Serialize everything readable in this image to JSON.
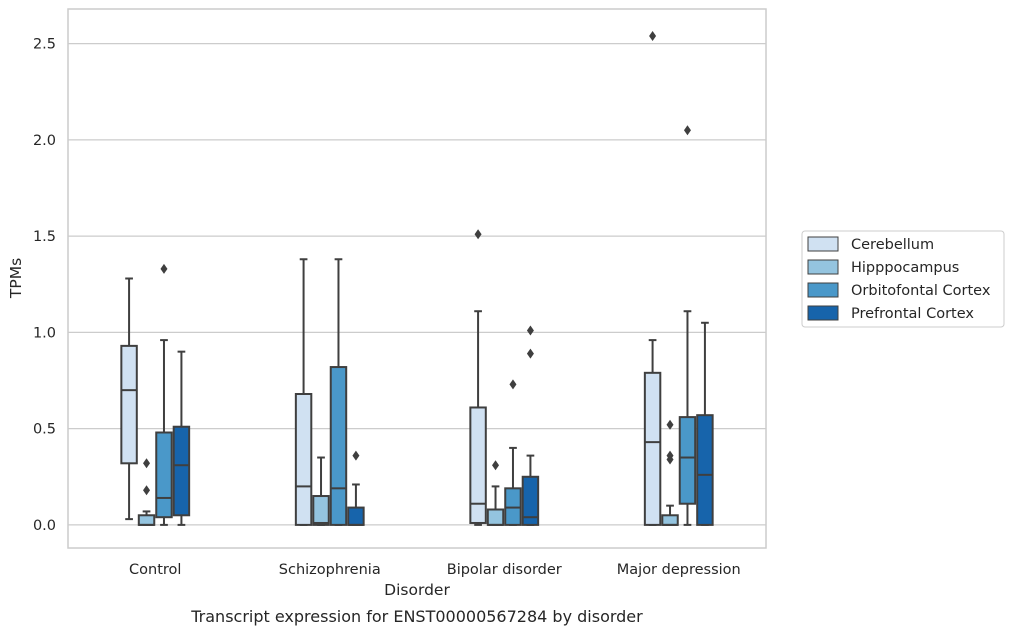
{
  "caption": "Transcript expression for ENST00000567284 by disorder",
  "colors": {
    "Cerebellum": "#d0e1f2",
    "Hipppocampus": "#94c4df",
    "Orbitofontal Cortex": "#4a98c9",
    "Prefrontal Cortex": "#1764ab"
  },
  "chart_data": {
    "type": "boxplot",
    "title": "",
    "xlabel": "Disorder",
    "ylabel": "TPMs",
    "ylim": [
      -0.12,
      2.68
    ],
    "yticks": [
      0.0,
      0.5,
      1.0,
      1.5,
      2.0,
      2.5
    ],
    "ytick_labels": [
      "0.0",
      "0.5",
      "1.0",
      "1.5",
      "2.0",
      "2.5"
    ],
    "grid": "horizontal",
    "legend_position": "right",
    "categories": [
      "Control",
      "Schizophrenia",
      "Bipolar disorder",
      "Major depression"
    ],
    "series": [
      {
        "name": "Cerebellum",
        "boxes": [
          {
            "whislo": 0.03,
            "q1": 0.32,
            "med": 0.7,
            "q3": 0.93,
            "whishi": 1.28,
            "fliers": []
          },
          {
            "whislo": 0.0,
            "q1": 0.0,
            "med": 0.2,
            "q3": 0.68,
            "whishi": 1.38,
            "fliers": []
          },
          {
            "whislo": 0.0,
            "q1": 0.01,
            "med": 0.11,
            "q3": 0.61,
            "whishi": 1.11,
            "fliers": [
              1.51
            ]
          },
          {
            "whislo": 0.0,
            "q1": 0.0,
            "med": 0.43,
            "q3": 0.79,
            "whishi": 0.96,
            "fliers": [
              2.54
            ]
          }
        ]
      },
      {
        "name": "Hipppocampus",
        "boxes": [
          {
            "whislo": 0.0,
            "q1": 0.0,
            "med": 0.0,
            "q3": 0.05,
            "whishi": 0.07,
            "fliers": [
              0.32,
              0.18
            ]
          },
          {
            "whislo": 0.0,
            "q1": 0.0,
            "med": 0.01,
            "q3": 0.15,
            "whishi": 0.35,
            "fliers": []
          },
          {
            "whislo": 0.0,
            "q1": 0.0,
            "med": 0.0,
            "q3": 0.08,
            "whishi": 0.2,
            "fliers": [
              0.31
            ]
          },
          {
            "whislo": 0.0,
            "q1": 0.0,
            "med": 0.0,
            "q3": 0.05,
            "whishi": 0.1,
            "fliers": [
              0.52,
              0.36,
              0.34
            ]
          }
        ]
      },
      {
        "name": "Orbitofontal Cortex",
        "boxes": [
          {
            "whislo": 0.0,
            "q1": 0.04,
            "med": 0.14,
            "q3": 0.48,
            "whishi": 0.96,
            "fliers": [
              1.33
            ]
          },
          {
            "whislo": 0.0,
            "q1": 0.0,
            "med": 0.19,
            "q3": 0.82,
            "whishi": 1.38,
            "fliers": []
          },
          {
            "whislo": 0.0,
            "q1": 0.0,
            "med": 0.09,
            "q3": 0.19,
            "whishi": 0.4,
            "fliers": [
              0.73
            ]
          },
          {
            "whislo": 0.0,
            "q1": 0.11,
            "med": 0.35,
            "q3": 0.56,
            "whishi": 1.11,
            "fliers": [
              2.05
            ]
          }
        ]
      },
      {
        "name": "Prefrontal Cortex",
        "boxes": [
          {
            "whislo": 0.0,
            "q1": 0.05,
            "med": 0.31,
            "q3": 0.51,
            "whishi": 0.9,
            "fliers": []
          },
          {
            "whislo": 0.0,
            "q1": 0.0,
            "med": 0.0,
            "q3": 0.09,
            "whishi": 0.21,
            "fliers": [
              0.36
            ]
          },
          {
            "whislo": 0.0,
            "q1": 0.0,
            "med": 0.04,
            "q3": 0.25,
            "whishi": 0.36,
            "fliers": [
              1.01,
              0.89
            ]
          },
          {
            "whislo": 0.0,
            "q1": 0.0,
            "med": 0.26,
            "q3": 0.57,
            "whishi": 1.05,
            "fliers": []
          }
        ]
      }
    ]
  }
}
